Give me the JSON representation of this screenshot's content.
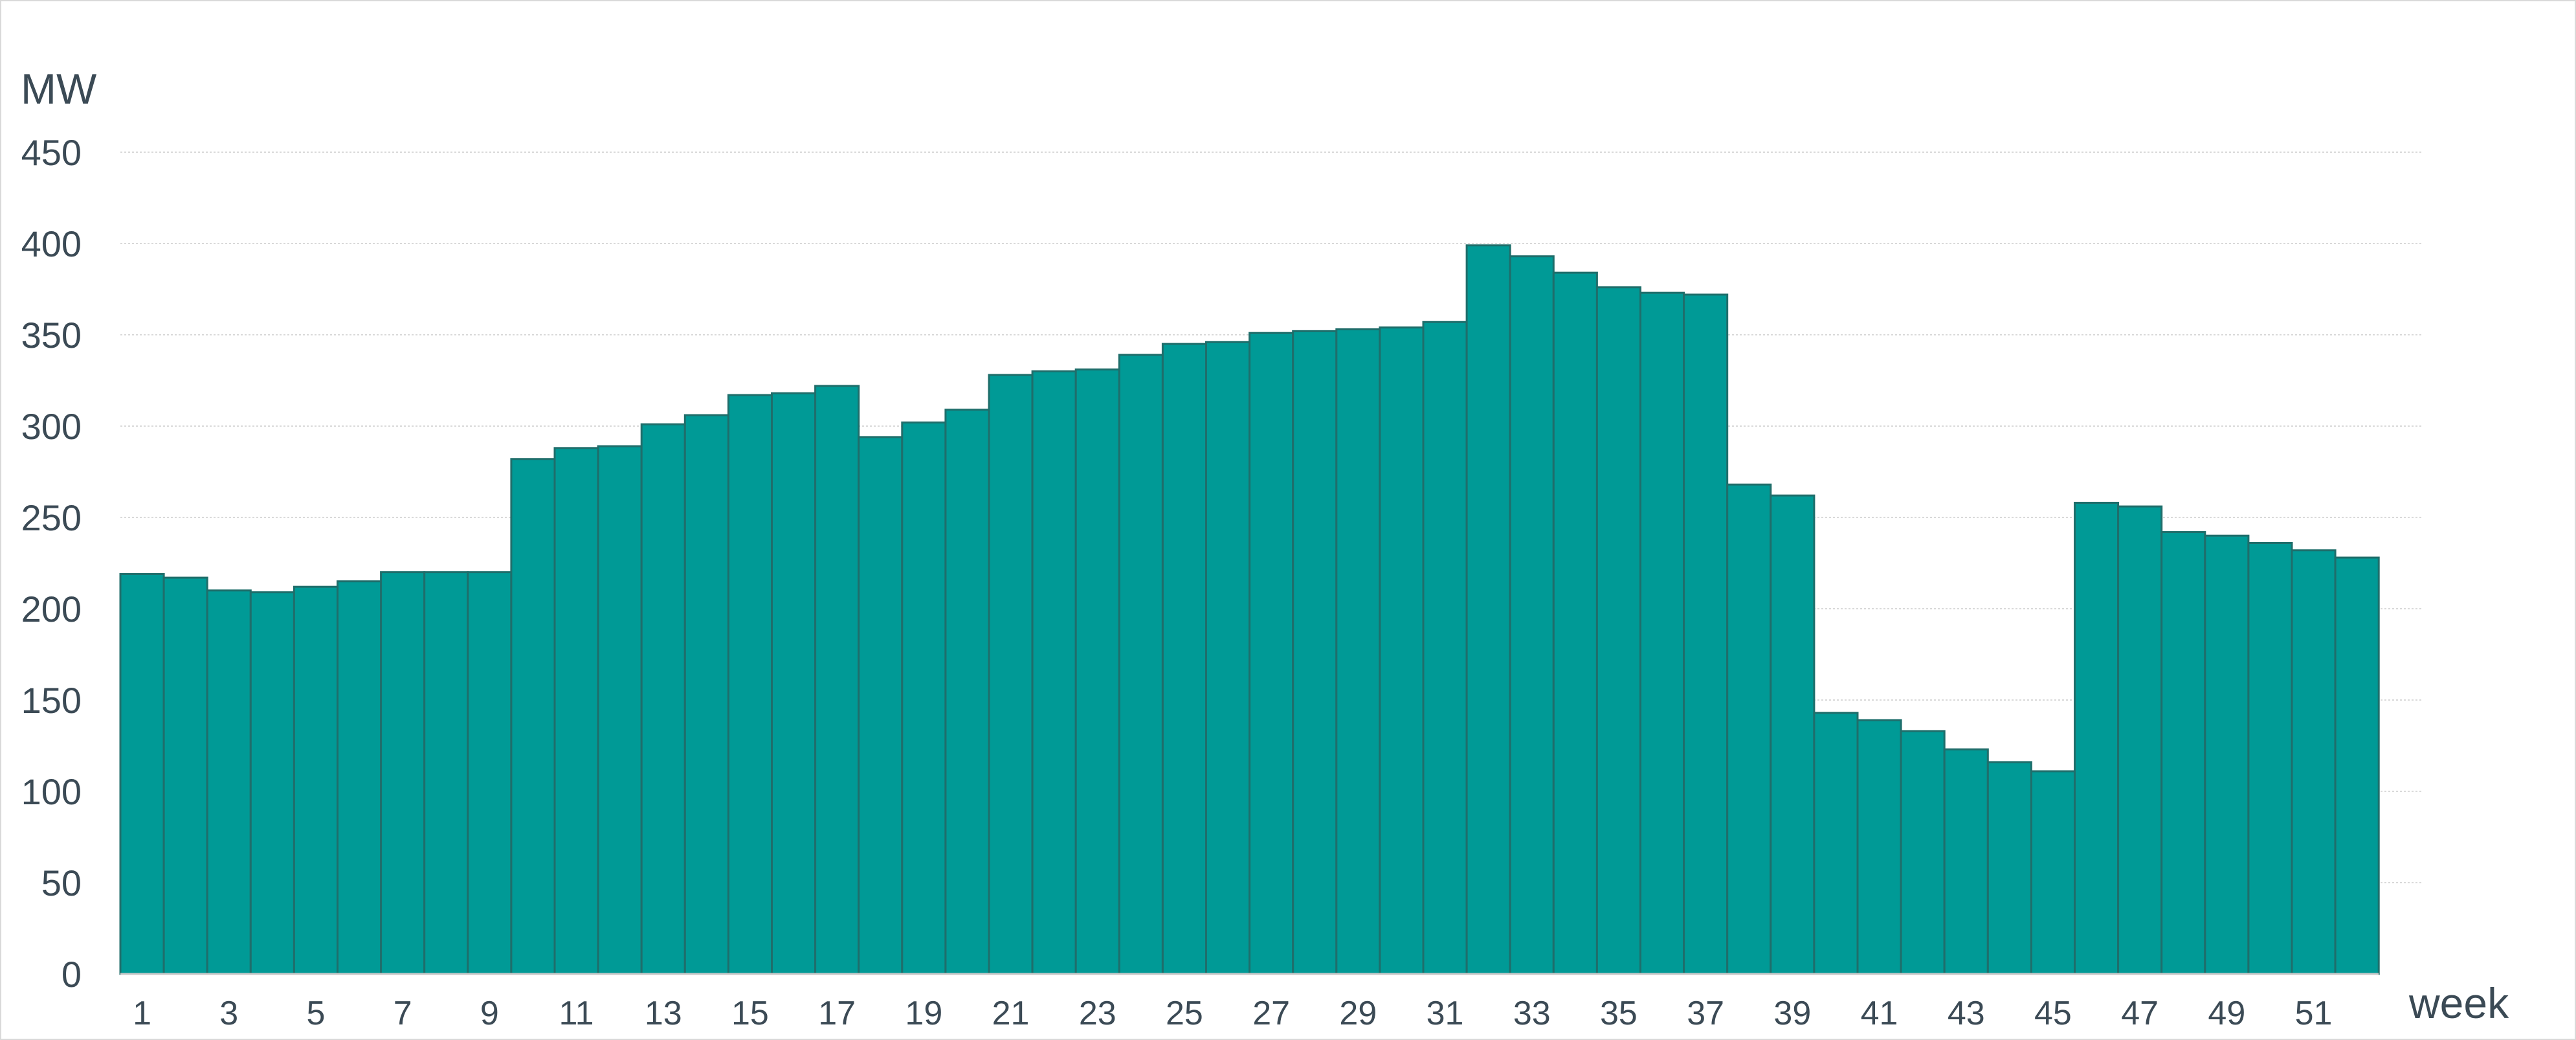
{
  "chart_data": {
    "type": "bar",
    "title": "",
    "ylabel": "MW",
    "xlabel": "week",
    "ylim": [
      0,
      450
    ],
    "yticks": [
      0,
      50,
      100,
      150,
      200,
      250,
      300,
      350,
      400,
      450
    ],
    "categories": [
      "1",
      "2",
      "3",
      "4",
      "5",
      "6",
      "7",
      "8",
      "9",
      "10",
      "11",
      "12",
      "13",
      "14",
      "15",
      "16",
      "17",
      "18",
      "19",
      "20",
      "21",
      "22",
      "23",
      "24",
      "25",
      "26",
      "27",
      "28",
      "29",
      "30",
      "31",
      "32",
      "33",
      "34",
      "35",
      "36",
      "37",
      "38",
      "39",
      "40",
      "41",
      "42",
      "43",
      "44",
      "45",
      "46",
      "47",
      "48",
      "49",
      "50",
      "51",
      "52"
    ],
    "x_tick_labels": [
      "1",
      "3",
      "5",
      "7",
      "9",
      "11",
      "13",
      "15",
      "17",
      "19",
      "21",
      "23",
      "25",
      "27",
      "29",
      "31",
      "33",
      "35",
      "37",
      "39",
      "41",
      "43",
      "45",
      "47",
      "49",
      "51"
    ],
    "values": [
      219,
      217,
      210,
      209,
      212,
      215,
      220,
      220,
      220,
      282,
      288,
      289,
      301,
      306,
      317,
      318,
      322,
      294,
      302,
      309,
      328,
      330,
      331,
      339,
      345,
      346,
      351,
      352,
      353,
      354,
      357,
      399,
      393,
      384,
      376,
      373,
      372,
      268,
      262,
      143,
      139,
      133,
      123,
      116,
      111,
      258,
      256,
      242,
      240,
      236,
      232,
      228
    ],
    "grid": true,
    "legend": "none",
    "colors": {
      "bar_fill": "#009a96",
      "bar_edge": "#1f6e6b",
      "text": "#3b4a55",
      "grid": "#d9d9d9"
    }
  }
}
